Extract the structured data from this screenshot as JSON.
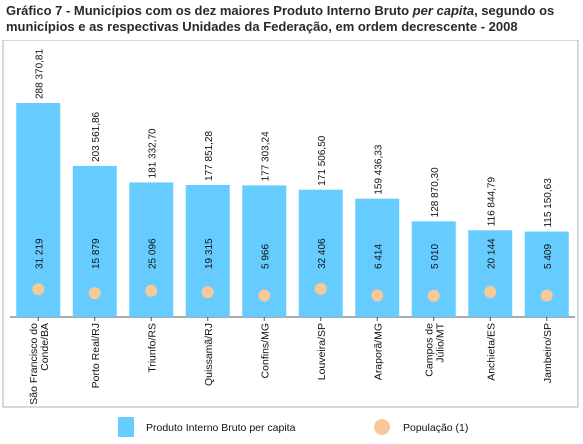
{
  "title": {
    "lead": "Gráfico 7 - Municípios com os dez maiores Produto Interno Bruto ",
    "emph": "per capita",
    "rest": ", segundo os municípios e as respectivas Unidades da Federação, em ordem decrescente - 2008"
  },
  "colors": {
    "bar": "#66ccff",
    "bar_stroke": "#3ea6dd",
    "dot": "#f8c898",
    "axis": "#555555",
    "frame": "#b0b0b0"
  },
  "chart_data": {
    "type": "bar",
    "categories": [
      [
        "São Francisco do",
        "Conde/BA"
      ],
      [
        "Porto Real/RJ"
      ],
      [
        "Triunfo/RS"
      ],
      [
        "Quissamã/RJ"
      ],
      [
        "Confins/MG"
      ],
      [
        "Louveira/SP"
      ],
      [
        "Araporã/MG"
      ],
      [
        "Campos de",
        "Júlio/MT"
      ],
      [
        "Anchieta/ES"
      ],
      [
        "Jambeiro/SP"
      ]
    ],
    "series": [
      {
        "name": "Produto Interno Bruto per capita",
        "values": [
          288370.81,
          203561.86,
          181332.7,
          177851.28,
          177303.24,
          171506.5,
          159436.33,
          128870.3,
          116844.79,
          115150.63
        ],
        "labels": [
          "288 370,81",
          "203 561,86",
          "181 332,70",
          "177 851,28",
          "177 303,24",
          "171 506,50",
          "159 436,33",
          "128 870,30",
          "116 844,79",
          "115 150,63"
        ]
      },
      {
        "name": "População (1)",
        "values": [
          31219,
          15879,
          25096,
          19315,
          5966,
          32406,
          6414,
          5010,
          20144,
          5409
        ],
        "labels": [
          "31 219",
          "15 879",
          "25 096",
          "19 315",
          "5 966",
          "32 406",
          "6 414",
          "5 010",
          "20 144",
          "5 409"
        ]
      }
    ],
    "legend": {
      "position": "bottom",
      "items": [
        "Produto Interno Bruto per capita",
        "População (1)"
      ]
    }
  }
}
